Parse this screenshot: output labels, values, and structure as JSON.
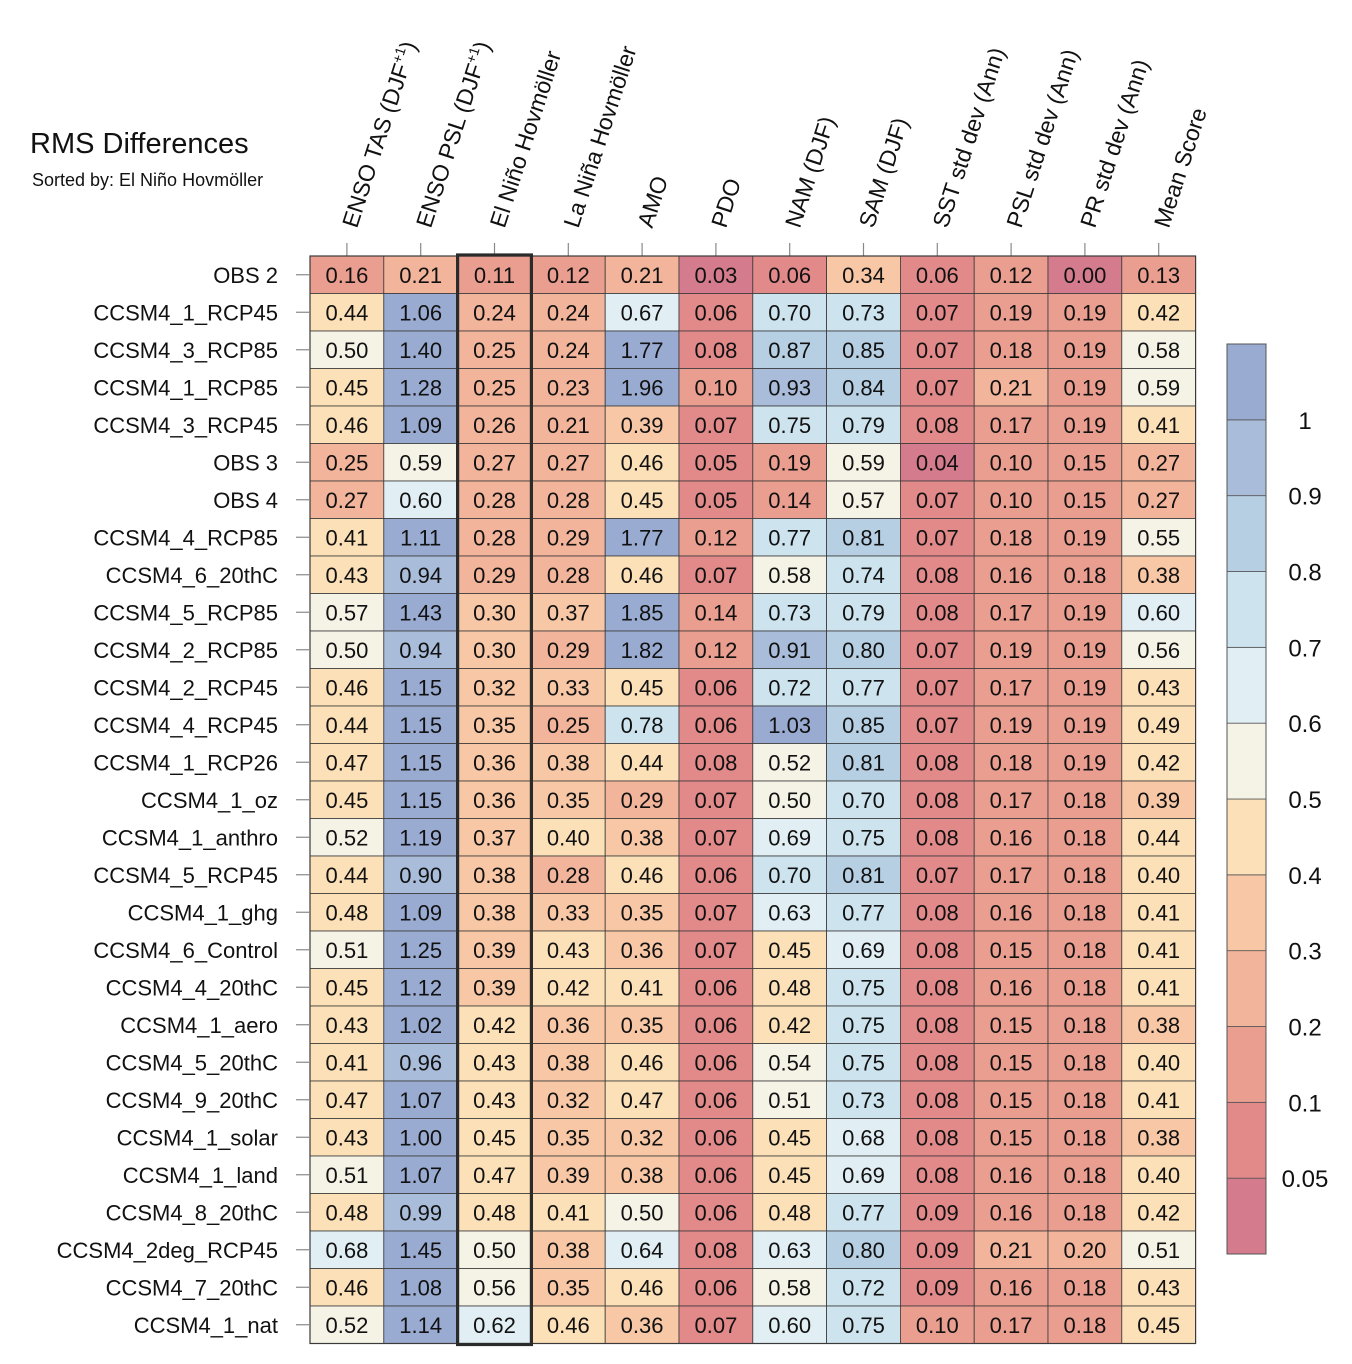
{
  "chart_data": {
    "type": "heatmap",
    "title": "RMS Differences",
    "subtitle": "Sorted by: El Niño Hovmöller",
    "sorted_column": "El Niño Hovmöller",
    "columns": [
      {
        "main": "ENSO TAS (DJF",
        "sup": "+1",
        "tail": ")"
      },
      {
        "main": "ENSO PSL (DJF",
        "sup": "+1",
        "tail": ")"
      },
      {
        "main": "El Niño Hovmöller",
        "sup": "",
        "tail": ""
      },
      {
        "main": "La Niña Hovmöller",
        "sup": "",
        "tail": ""
      },
      {
        "main": "AMO",
        "sup": "",
        "tail": ""
      },
      {
        "main": "PDO",
        "sup": "",
        "tail": ""
      },
      {
        "main": "NAM (DJF)",
        "sup": "",
        "tail": ""
      },
      {
        "main": "SAM (DJF)",
        "sup": "",
        "tail": ""
      },
      {
        "main": "SST std dev (Ann)",
        "sup": "",
        "tail": ""
      },
      {
        "main": "PSL std dev (Ann)",
        "sup": "",
        "tail": ""
      },
      {
        "main": "PR std dev (Ann)",
        "sup": "",
        "tail": ""
      },
      {
        "main": "Mean Score",
        "sup": "",
        "tail": ""
      }
    ],
    "rows": [
      {
        "label": "OBS 2",
        "values": [
          "0.16",
          "0.21",
          "0.11",
          "0.12",
          "0.21",
          "0.03",
          "0.06",
          "0.34",
          "0.06",
          "0.12",
          "0.00",
          "0.13"
        ]
      },
      {
        "label": "CCSM4_1_RCP45",
        "values": [
          "0.44",
          "1.06",
          "0.24",
          "0.24",
          "0.67",
          "0.06",
          "0.70",
          "0.73",
          "0.07",
          "0.19",
          "0.19",
          "0.42"
        ]
      },
      {
        "label": "CCSM4_3_RCP85",
        "values": [
          "0.50",
          "1.40",
          "0.25",
          "0.24",
          "1.77",
          "0.08",
          "0.87",
          "0.85",
          "0.07",
          "0.18",
          "0.19",
          "0.58"
        ]
      },
      {
        "label": "CCSM4_1_RCP85",
        "values": [
          "0.45",
          "1.28",
          "0.25",
          "0.23",
          "1.96",
          "0.10",
          "0.93",
          "0.84",
          "0.07",
          "0.21",
          "0.19",
          "0.59"
        ]
      },
      {
        "label": "CCSM4_3_RCP45",
        "values": [
          "0.46",
          "1.09",
          "0.26",
          "0.21",
          "0.39",
          "0.07",
          "0.75",
          "0.79",
          "0.08",
          "0.17",
          "0.19",
          "0.41"
        ]
      },
      {
        "label": "OBS 3",
        "values": [
          "0.25",
          "0.59",
          "0.27",
          "0.27",
          "0.46",
          "0.05",
          "0.19",
          "0.59",
          "0.04",
          "0.10",
          "0.15",
          "0.27"
        ]
      },
      {
        "label": "OBS 4",
        "values": [
          "0.27",
          "0.60",
          "0.28",
          "0.28",
          "0.45",
          "0.05",
          "0.14",
          "0.57",
          "0.07",
          "0.10",
          "0.15",
          "0.27"
        ]
      },
      {
        "label": "CCSM4_4_RCP85",
        "values": [
          "0.41",
          "1.11",
          "0.28",
          "0.29",
          "1.77",
          "0.12",
          "0.77",
          "0.81",
          "0.07",
          "0.18",
          "0.19",
          "0.55"
        ]
      },
      {
        "label": "CCSM4_6_20thC",
        "values": [
          "0.43",
          "0.94",
          "0.29",
          "0.28",
          "0.46",
          "0.07",
          "0.58",
          "0.74",
          "0.08",
          "0.16",
          "0.18",
          "0.38"
        ]
      },
      {
        "label": "CCSM4_5_RCP85",
        "values": [
          "0.57",
          "1.43",
          "0.30",
          "0.37",
          "1.85",
          "0.14",
          "0.73",
          "0.79",
          "0.08",
          "0.17",
          "0.19",
          "0.60"
        ]
      },
      {
        "label": "CCSM4_2_RCP85",
        "values": [
          "0.50",
          "0.94",
          "0.30",
          "0.29",
          "1.82",
          "0.12",
          "0.91",
          "0.80",
          "0.07",
          "0.19",
          "0.19",
          "0.56"
        ]
      },
      {
        "label": "CCSM4_2_RCP45",
        "values": [
          "0.46",
          "1.15",
          "0.32",
          "0.33",
          "0.45",
          "0.06",
          "0.72",
          "0.77",
          "0.07",
          "0.17",
          "0.19",
          "0.43"
        ]
      },
      {
        "label": "CCSM4_4_RCP45",
        "values": [
          "0.44",
          "1.15",
          "0.35",
          "0.25",
          "0.78",
          "0.06",
          "1.03",
          "0.85",
          "0.07",
          "0.19",
          "0.19",
          "0.49"
        ]
      },
      {
        "label": "CCSM4_1_RCP26",
        "values": [
          "0.47",
          "1.15",
          "0.36",
          "0.38",
          "0.44",
          "0.08",
          "0.52",
          "0.81",
          "0.08",
          "0.18",
          "0.19",
          "0.42"
        ]
      },
      {
        "label": "CCSM4_1_oz",
        "values": [
          "0.45",
          "1.15",
          "0.36",
          "0.35",
          "0.29",
          "0.07",
          "0.50",
          "0.70",
          "0.08",
          "0.17",
          "0.18",
          "0.39"
        ]
      },
      {
        "label": "CCSM4_1_anthro",
        "values": [
          "0.52",
          "1.19",
          "0.37",
          "0.40",
          "0.38",
          "0.07",
          "0.69",
          "0.75",
          "0.08",
          "0.16",
          "0.18",
          "0.44"
        ]
      },
      {
        "label": "CCSM4_5_RCP45",
        "values": [
          "0.44",
          "0.90",
          "0.38",
          "0.28",
          "0.46",
          "0.06",
          "0.70",
          "0.81",
          "0.07",
          "0.17",
          "0.18",
          "0.40"
        ]
      },
      {
        "label": "CCSM4_1_ghg",
        "values": [
          "0.48",
          "1.09",
          "0.38",
          "0.33",
          "0.35",
          "0.07",
          "0.63",
          "0.77",
          "0.08",
          "0.16",
          "0.18",
          "0.41"
        ]
      },
      {
        "label": "CCSM4_6_Control",
        "values": [
          "0.51",
          "1.25",
          "0.39",
          "0.43",
          "0.36",
          "0.07",
          "0.45",
          "0.69",
          "0.08",
          "0.15",
          "0.18",
          "0.41"
        ]
      },
      {
        "label": "CCSM4_4_20thC",
        "values": [
          "0.45",
          "1.12",
          "0.39",
          "0.42",
          "0.41",
          "0.06",
          "0.48",
          "0.75",
          "0.08",
          "0.16",
          "0.18",
          "0.41"
        ]
      },
      {
        "label": "CCSM4_1_aero",
        "values": [
          "0.43",
          "1.02",
          "0.42",
          "0.36",
          "0.35",
          "0.06",
          "0.42",
          "0.75",
          "0.08",
          "0.15",
          "0.18",
          "0.38"
        ]
      },
      {
        "label": "CCSM4_5_20thC",
        "values": [
          "0.41",
          "0.96",
          "0.43",
          "0.38",
          "0.46",
          "0.06",
          "0.54",
          "0.75",
          "0.08",
          "0.15",
          "0.18",
          "0.40"
        ]
      },
      {
        "label": "CCSM4_9_20thC",
        "values": [
          "0.47",
          "1.07",
          "0.43",
          "0.32",
          "0.47",
          "0.06",
          "0.51",
          "0.73",
          "0.08",
          "0.15",
          "0.18",
          "0.41"
        ]
      },
      {
        "label": "CCSM4_1_solar",
        "values": [
          "0.43",
          "1.00",
          "0.45",
          "0.35",
          "0.32",
          "0.06",
          "0.45",
          "0.68",
          "0.08",
          "0.15",
          "0.18",
          "0.38"
        ]
      },
      {
        "label": "CCSM4_1_land",
        "values": [
          "0.51",
          "1.07",
          "0.47",
          "0.39",
          "0.38",
          "0.06",
          "0.45",
          "0.69",
          "0.08",
          "0.16",
          "0.18",
          "0.40"
        ]
      },
      {
        "label": "CCSM4_8_20thC",
        "values": [
          "0.48",
          "0.99",
          "0.48",
          "0.41",
          "0.50",
          "0.06",
          "0.48",
          "0.77",
          "0.09",
          "0.16",
          "0.18",
          "0.42"
        ]
      },
      {
        "label": "CCSM4_2deg_RCP45",
        "values": [
          "0.68",
          "1.45",
          "0.50",
          "0.38",
          "0.64",
          "0.08",
          "0.63",
          "0.80",
          "0.09",
          "0.21",
          "0.20",
          "0.51"
        ]
      },
      {
        "label": "CCSM4_7_20thC",
        "values": [
          "0.46",
          "1.08",
          "0.56",
          "0.35",
          "0.46",
          "0.06",
          "0.58",
          "0.72",
          "0.09",
          "0.16",
          "0.18",
          "0.43"
        ]
      },
      {
        "label": "CCSM4_1_nat",
        "values": [
          "0.52",
          "1.14",
          "0.62",
          "0.46",
          "0.36",
          "0.07",
          "0.60",
          "0.75",
          "0.10",
          "0.17",
          "0.18",
          "0.45"
        ]
      }
    ],
    "colorbar": {
      "levels": [
        0.05,
        0.1,
        0.2,
        0.3,
        0.4,
        0.5,
        0.6,
        0.7,
        0.8,
        0.9,
        1
      ],
      "labels": [
        "0.05",
        "0.1",
        "0.2",
        "0.3",
        "0.4",
        "0.5",
        "0.6",
        "0.7",
        "0.8",
        "0.9",
        "1"
      ],
      "colors": [
        "#d47c8d",
        "#e2898a",
        "#ea9e90",
        "#f2b49a",
        "#f8c8a6",
        "#fce0b8",
        "#f5f2e6",
        "#e1eef4",
        "#cde4ee",
        "#b7cfe3",
        "#a9bddb",
        "#9aabd2"
      ]
    }
  }
}
